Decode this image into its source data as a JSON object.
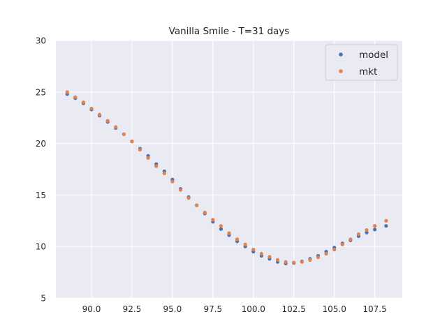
{
  "chart_data": {
    "type": "scatter",
    "title": "Vanilla Smile - T=31 days",
    "xlabel": "",
    "ylabel": "",
    "xlim": [
      87.8,
      109.2
    ],
    "ylim": [
      5,
      30
    ],
    "xticks": [
      90.0,
      92.5,
      95.0,
      97.5,
      100.0,
      102.5,
      105.0,
      107.5
    ],
    "xtick_labels": [
      "90.0",
      "92.5",
      "95.0",
      "97.5",
      "100.0",
      "102.5",
      "105.0",
      "107.5"
    ],
    "yticks": [
      5,
      10,
      15,
      20,
      25,
      30
    ],
    "ytick_labels": [
      "5",
      "10",
      "15",
      "20",
      "25",
      "30"
    ],
    "grid": true,
    "legend_position": "top-right",
    "background": "#eaeaf2",
    "series": [
      {
        "name": "model",
        "color": "#4c72b0",
        "x_start": 88.5,
        "x_end": 108.2,
        "points": [
          [
            88.5,
            24.8
          ],
          [
            89.0,
            24.4
          ],
          [
            89.5,
            23.9
          ],
          [
            90.0,
            23.3
          ],
          [
            90.5,
            22.7
          ],
          [
            91.0,
            22.1
          ],
          [
            91.5,
            21.5
          ],
          [
            92.0,
            20.9
          ],
          [
            92.5,
            20.2
          ],
          [
            93.0,
            19.5
          ],
          [
            93.5,
            18.8
          ],
          [
            94.0,
            18.0
          ],
          [
            94.5,
            17.3
          ],
          [
            95.0,
            16.5
          ],
          [
            95.5,
            15.6
          ],
          [
            96.0,
            14.8
          ],
          [
            96.5,
            14.0
          ],
          [
            97.0,
            13.2
          ],
          [
            97.5,
            12.4
          ],
          [
            98.0,
            11.7
          ],
          [
            98.5,
            11.1
          ],
          [
            99.0,
            10.5
          ],
          [
            99.5,
            10.0
          ],
          [
            100.0,
            9.5
          ],
          [
            100.5,
            9.1
          ],
          [
            101.0,
            8.8
          ],
          [
            101.5,
            8.5
          ],
          [
            102.0,
            8.35
          ],
          [
            102.5,
            8.4
          ],
          [
            103.0,
            8.55
          ],
          [
            103.5,
            8.8
          ],
          [
            104.0,
            9.1
          ],
          [
            104.5,
            9.5
          ],
          [
            105.0,
            9.9
          ],
          [
            105.5,
            10.3
          ],
          [
            106.0,
            10.6
          ],
          [
            106.5,
            11.0
          ],
          [
            107.0,
            11.35
          ],
          [
            107.5,
            11.65
          ],
          [
            108.2,
            12.0
          ]
        ]
      },
      {
        "name": "mkt",
        "color": "#dd8452",
        "x_start": 88.5,
        "x_end": 108.2,
        "points": [
          [
            88.5,
            25.0
          ],
          [
            89.0,
            24.5
          ],
          [
            89.5,
            24.0
          ],
          [
            90.0,
            23.4
          ],
          [
            90.5,
            22.8
          ],
          [
            91.0,
            22.2
          ],
          [
            91.5,
            21.6
          ],
          [
            92.0,
            20.9
          ],
          [
            92.5,
            20.2
          ],
          [
            93.0,
            19.4
          ],
          [
            93.5,
            18.6
          ],
          [
            94.0,
            17.8
          ],
          [
            94.5,
            17.1
          ],
          [
            95.0,
            16.3
          ],
          [
            95.5,
            15.5
          ],
          [
            96.0,
            14.7
          ],
          [
            96.5,
            14.0
          ],
          [
            97.0,
            13.3
          ],
          [
            97.5,
            12.6
          ],
          [
            98.0,
            12.0
          ],
          [
            98.5,
            11.3
          ],
          [
            99.0,
            10.7
          ],
          [
            99.5,
            10.2
          ],
          [
            100.0,
            9.7
          ],
          [
            100.5,
            9.3
          ],
          [
            101.0,
            9.0
          ],
          [
            101.5,
            8.7
          ],
          [
            102.0,
            8.5
          ],
          [
            102.5,
            8.45
          ],
          [
            103.0,
            8.5
          ],
          [
            103.5,
            8.7
          ],
          [
            104.0,
            8.95
          ],
          [
            104.5,
            9.3
          ],
          [
            105.0,
            9.7
          ],
          [
            105.5,
            10.2
          ],
          [
            106.0,
            10.7
          ],
          [
            106.5,
            11.2
          ],
          [
            107.0,
            11.6
          ],
          [
            107.5,
            12.0
          ],
          [
            108.2,
            12.5
          ]
        ]
      }
    ]
  }
}
